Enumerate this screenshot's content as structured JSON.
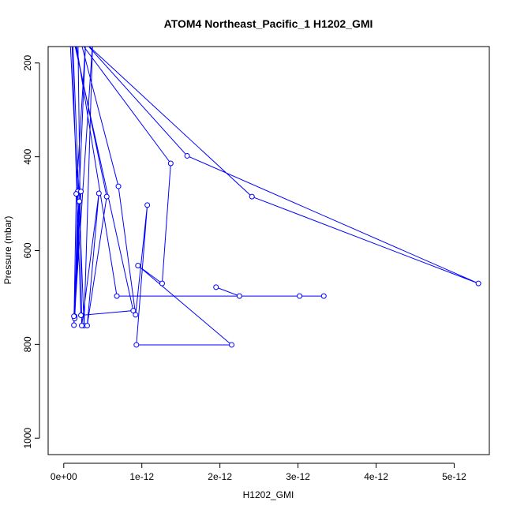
{
  "chart_data": {
    "type": "line",
    "title": "ATOM4 Northeast_Pacific_1 H1202_GMI",
    "xlabel": "H1202_GMI",
    "ylabel": "Pressure (mbar)",
    "xlim": [
      -2e-13,
      5.45e-12
    ],
    "ylim": [
      1035,
      165
    ],
    "y_axis_reversed": true,
    "x_ticks": [
      0,
      1e-12,
      2e-12,
      3e-12,
      4e-12,
      5e-12
    ],
    "x_tick_labels": [
      "0e+00",
      "1e-12",
      "2e-12",
      "3e-12",
      "4e-12",
      "5e-12"
    ],
    "y_ticks": [
      200,
      400,
      600,
      800,
      1000
    ],
    "y_tick_labels": [
      "200",
      "400",
      "600",
      "800",
      "1000"
    ],
    "grid": false,
    "series_color": "#0000ff",
    "marker": "open-circle",
    "series": [
      {
        "points": [
          {
            "x": 7.5e-14,
            "y": 130
          },
          {
            "x": 1.8e-13,
            "y": 474
          },
          {
            "x": 1.4e-13,
            "y": 740
          },
          {
            "x": 2.2e-13,
            "y": 474
          },
          {
            "x": 1.4e-13,
            "y": 745
          },
          {
            "x": 2e-13,
            "y": 495
          },
          {
            "x": 1.3e-13,
            "y": 740
          },
          {
            "x": 2.8e-13,
            "y": 155
          },
          {
            "x": 1.6e-13,
            "y": 479
          },
          {
            "x": 1.3e-13,
            "y": 759
          },
          {
            "x": 3.7e-13,
            "y": 155
          },
          {
            "x": 2.6e-13,
            "y": 760
          },
          {
            "x": 1.1e-13,
            "y": 130
          },
          {
            "x": 5.5e-13,
            "y": 485
          },
          {
            "x": 3e-13,
            "y": 760
          },
          {
            "x": 4.5e-13,
            "y": 478
          },
          {
            "x": 2.3e-13,
            "y": 760
          },
          {
            "x": 1.8e-13,
            "y": 130
          },
          {
            "x": 7e-13,
            "y": 463
          },
          {
            "x": 9.2e-13,
            "y": 737
          },
          {
            "x": 1.07e-12,
            "y": 503
          },
          {
            "x": 9.3e-13,
            "y": 801
          },
          {
            "x": 2.15e-12,
            "y": 801
          },
          {
            "x": 9.5e-13,
            "y": 632
          },
          {
            "x": 1.26e-12,
            "y": 670
          },
          {
            "x": 1.37e-12,
            "y": 414
          },
          {
            "x": 1e-13,
            "y": 130
          },
          {
            "x": 8.9e-13,
            "y": 728
          },
          {
            "x": 2.2e-13,
            "y": 738
          },
          {
            "x": 1e-13,
            "y": 130
          },
          {
            "x": 2.41e-12,
            "y": 485
          },
          {
            "x": 5.31e-12,
            "y": 670
          },
          {
            "x": 1.58e-12,
            "y": 398
          },
          {
            "x": 1.3e-13,
            "y": 130
          },
          {
            "x": 6.8e-13,
            "y": 697
          },
          {
            "x": 3.33e-12,
            "y": 697
          },
          {
            "x": 3.02e-12,
            "y": 697
          },
          {
            "x": 2.25e-12,
            "y": 697
          },
          {
            "x": 1.95e-12,
            "y": 678
          }
        ]
      }
    ]
  }
}
